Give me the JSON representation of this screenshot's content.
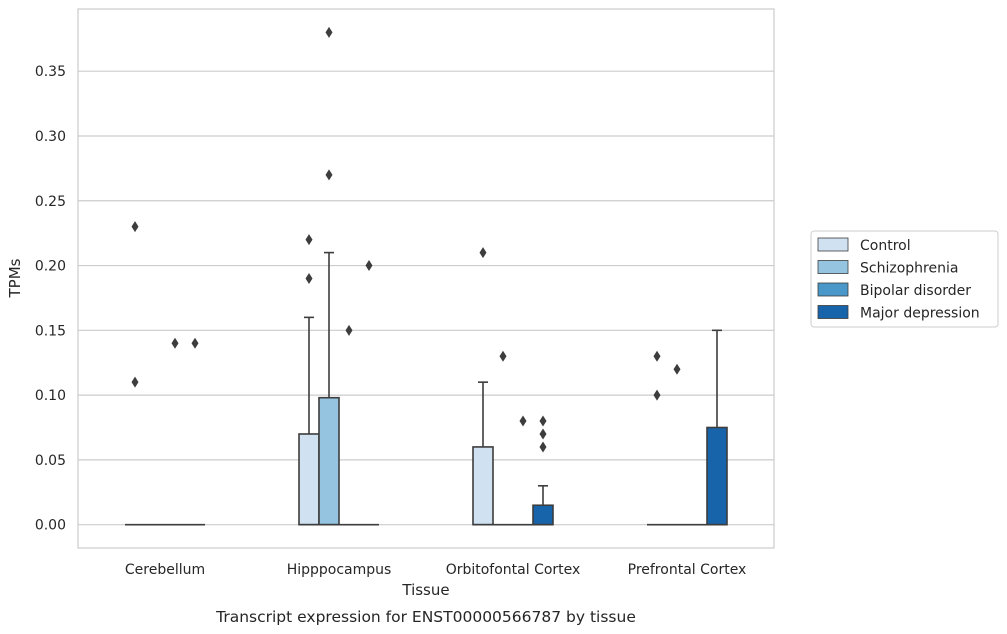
{
  "chart_data": {
    "type": "box",
    "xlabel": "Tissue",
    "ylabel": "TPMs",
    "caption": "Transcript expression for ENST00000566787 by tissue",
    "ylim": [
      -0.018,
      0.398
    ],
    "yticks": [
      "0.00",
      "0.05",
      "0.10",
      "0.15",
      "0.20",
      "0.25",
      "0.30",
      "0.35"
    ],
    "grid": "horizontal",
    "legend_position": "right",
    "categories": [
      "Cerebellum",
      "Hipppocampus",
      "Orbitofontal Cortex",
      "Prefrontal Cortex"
    ],
    "series": [
      {
        "name": "Control",
        "color": "#d0e1f2"
      },
      {
        "name": "Schizophrenia",
        "color": "#94c4df"
      },
      {
        "name": "Bipolar disorder",
        "color": "#4a98c9"
      },
      {
        "name": "Major depression",
        "color": "#1764ab"
      }
    ],
    "boxes": [
      [
        {
          "q1": 0,
          "median": 0,
          "q3": 0,
          "whislo": 0,
          "whishi": 0,
          "fliers": [
            0.23,
            0.11
          ]
        },
        {
          "q1": 0,
          "median": 0,
          "q3": 0,
          "whislo": 0,
          "whishi": 0,
          "fliers": []
        },
        {
          "q1": 0,
          "median": 0,
          "q3": 0,
          "whislo": 0,
          "whishi": 0,
          "fliers": [
            0.14
          ]
        },
        {
          "q1": 0,
          "median": 0,
          "q3": 0,
          "whislo": 0,
          "whishi": 0,
          "fliers": [
            0.14
          ]
        }
      ],
      [
        {
          "q1": 0,
          "median": 0,
          "q3": 0.07,
          "whislo": 0,
          "whishi": 0.16,
          "fliers": [
            0.22,
            0.19
          ]
        },
        {
          "q1": 0,
          "median": 0,
          "q3": 0.098,
          "whislo": 0,
          "whishi": 0.21,
          "fliers": [
            0.38,
            0.27
          ]
        },
        {
          "q1": 0,
          "median": 0,
          "q3": 0,
          "whislo": 0,
          "whishi": 0,
          "fliers": [
            0.15
          ]
        },
        {
          "q1": 0,
          "median": 0,
          "q3": 0,
          "whislo": 0,
          "whishi": 0,
          "fliers": [
            0.2
          ]
        }
      ],
      [
        {
          "q1": 0,
          "median": 0,
          "q3": 0.06,
          "whislo": 0,
          "whishi": 0.11,
          "fliers": [
            0.21
          ]
        },
        {
          "q1": 0,
          "median": 0,
          "q3": 0,
          "whislo": 0,
          "whishi": 0,
          "fliers": [
            0.13
          ]
        },
        {
          "q1": 0,
          "median": 0,
          "q3": 0,
          "whislo": 0,
          "whishi": 0,
          "fliers": [
            0.08
          ]
        },
        {
          "q1": 0,
          "median": 0,
          "q3": 0.015,
          "whislo": 0,
          "whishi": 0.03,
          "fliers": [
            0.08,
            0.07,
            0.06
          ]
        }
      ],
      [
        {
          "q1": 0,
          "median": 0,
          "q3": 0,
          "whislo": 0,
          "whishi": 0,
          "fliers": [
            0.13,
            0.1
          ]
        },
        {
          "q1": 0,
          "median": 0,
          "q3": 0,
          "whislo": 0,
          "whishi": 0,
          "fliers": [
            0.12
          ]
        },
        {
          "q1": 0,
          "median": 0,
          "q3": 0,
          "whislo": 0,
          "whishi": 0,
          "fliers": []
        },
        {
          "q1": 0,
          "median": 0,
          "q3": 0.075,
          "whislo": 0,
          "whishi": 0.15,
          "fliers": []
        }
      ]
    ]
  }
}
